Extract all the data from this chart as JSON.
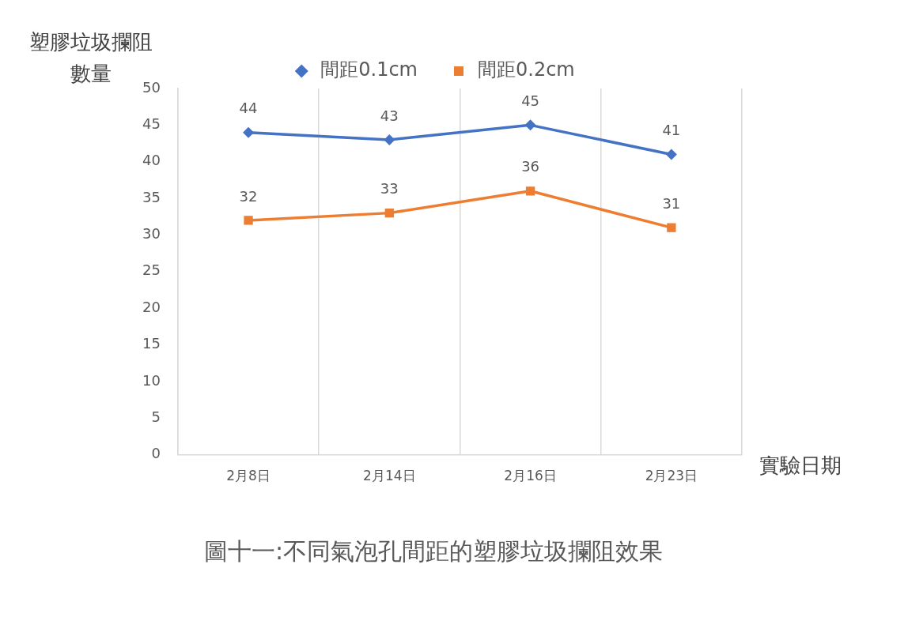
{
  "chart_data": {
    "type": "line",
    "title": "圖十一:不同氣泡孔間距的塑膠垃圾攔阻效果",
    "xlabel": "實驗日期",
    "ylabel": "塑膠垃圾攔阻數量",
    "categories": [
      "2月8日",
      "2月14日",
      "2月16日",
      "2月23日"
    ],
    "series": [
      {
        "name": "間距0.1cm",
        "color": "#4472c4",
        "marker": "diamond",
        "values": [
          44,
          43,
          45,
          41
        ]
      },
      {
        "name": "間距0.2cm",
        "color": "#ed7d31",
        "marker": "square",
        "values": [
          32,
          33,
          36,
          31
        ]
      }
    ],
    "ylim": [
      0,
      50
    ],
    "yticks": [
      0,
      5,
      10,
      15,
      20,
      25,
      30,
      35,
      40,
      45,
      50
    ],
    "grid": "x",
    "legend": "top",
    "data_labels": true,
    "line_style": "solid"
  }
}
